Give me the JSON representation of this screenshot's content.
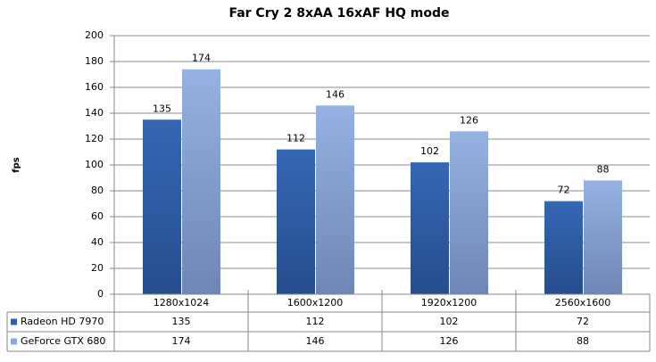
{
  "chart_data": {
    "type": "bar",
    "title": "Far Cry 2 8xAA 16xAF HQ mode",
    "y_label": "fps",
    "categories": [
      "1280x1024",
      "1600x1200",
      "1920x1200",
      "2560x1600"
    ],
    "series": [
      {
        "name": "Radeon HD 7970",
        "color": "#2f5fa8",
        "values": [
          135,
          112,
          102,
          72
        ]
      },
      {
        "name": "GeForce GTX 680",
        "color": "#8aa8d8",
        "values": [
          174,
          146,
          126,
          88
        ]
      }
    ],
    "ylim": [
      0,
      200
    ],
    "yticks": [
      0,
      20,
      40,
      60,
      80,
      100,
      120,
      140,
      160,
      180,
      200
    ],
    "grid": true,
    "data_table": true
  }
}
